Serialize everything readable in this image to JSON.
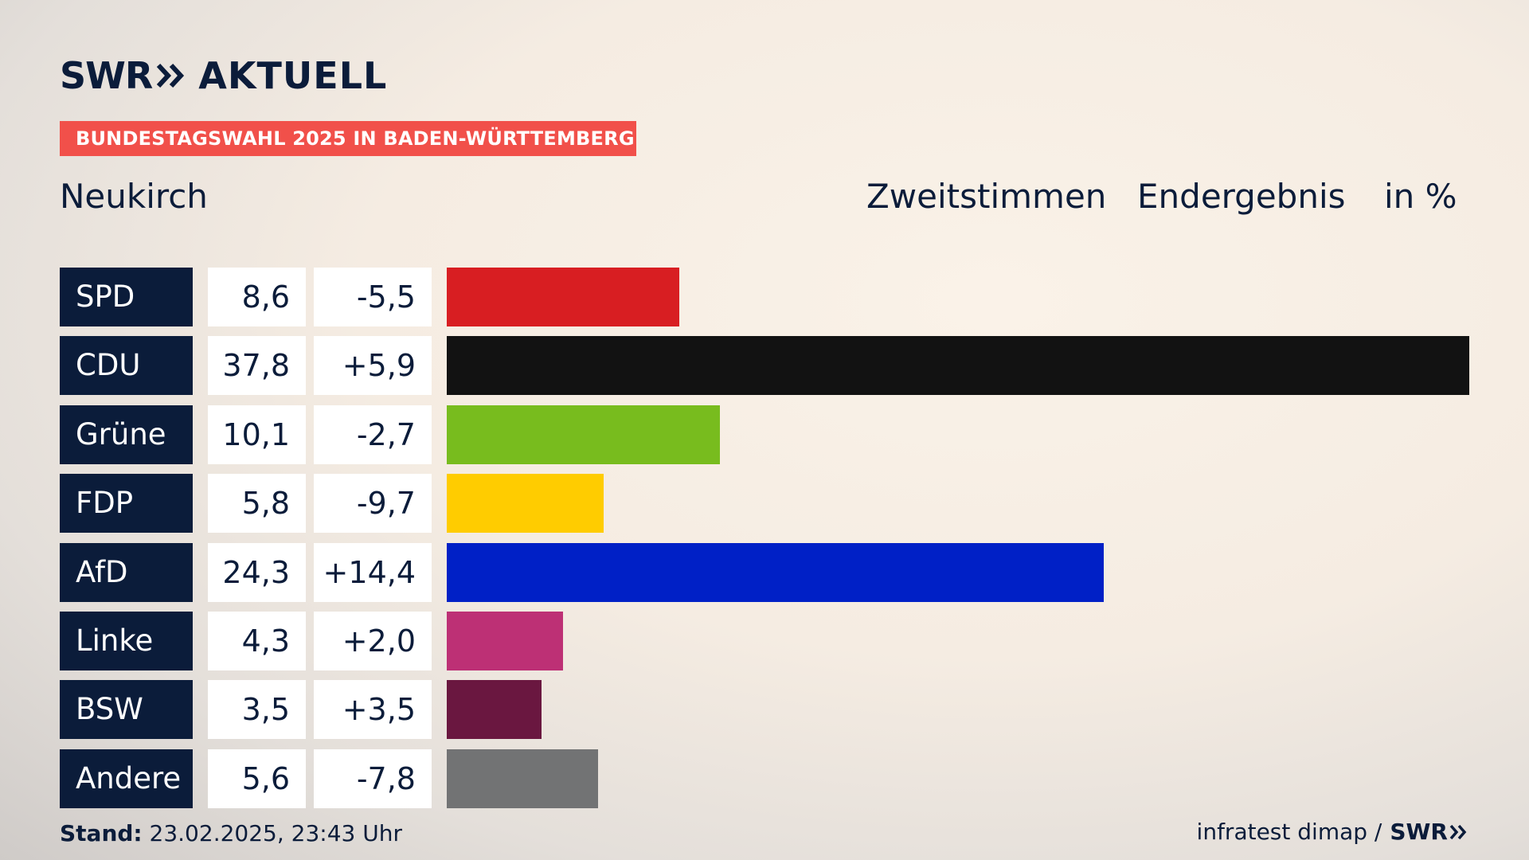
{
  "header": {
    "logo_swr": "SWR",
    "logo_chevron_icon": "double-chevron-right-icon",
    "logo_aktuell": "AKTUELL",
    "banner": "BUNDESTAGSWAHL 2025 IN BADEN-WÜRTTEMBERG",
    "region": "Neukirch",
    "col_vote": "Zweitstimmen",
    "col_status": "Endergebnis",
    "col_unit": "in %"
  },
  "chart_data": {
    "type": "bar",
    "orientation": "horizontal",
    "categories": [
      "SPD",
      "CDU",
      "Grüne",
      "FDP",
      "AfD",
      "Linke",
      "BSW",
      "Andere"
    ],
    "values_label": [
      "8,6",
      "37,8",
      "10,1",
      "5,8",
      "24,3",
      "4,3",
      "3,5",
      "5,6"
    ],
    "values": [
      8.6,
      37.8,
      10.1,
      5.8,
      24.3,
      4.3,
      3.5,
      5.6
    ],
    "diff_label": [
      "-5,5",
      "+5,9",
      "-2,7",
      "-9,7",
      "+14,4",
      "+2,0",
      "+3,5",
      "-7,8"
    ],
    "colors": [
      "#d81e22",
      "#121212",
      "#78bc1e",
      "#ffcc00",
      "#0020c6",
      "#bd3075",
      "#6a1740",
      "#727374"
    ],
    "xlim": [
      0,
      37.8
    ]
  },
  "footer": {
    "stand_label": "Stand:",
    "stand_value": "23.02.2025, 23:43 Uhr",
    "source": "infratest dimap /",
    "source_brand": "SWR"
  }
}
